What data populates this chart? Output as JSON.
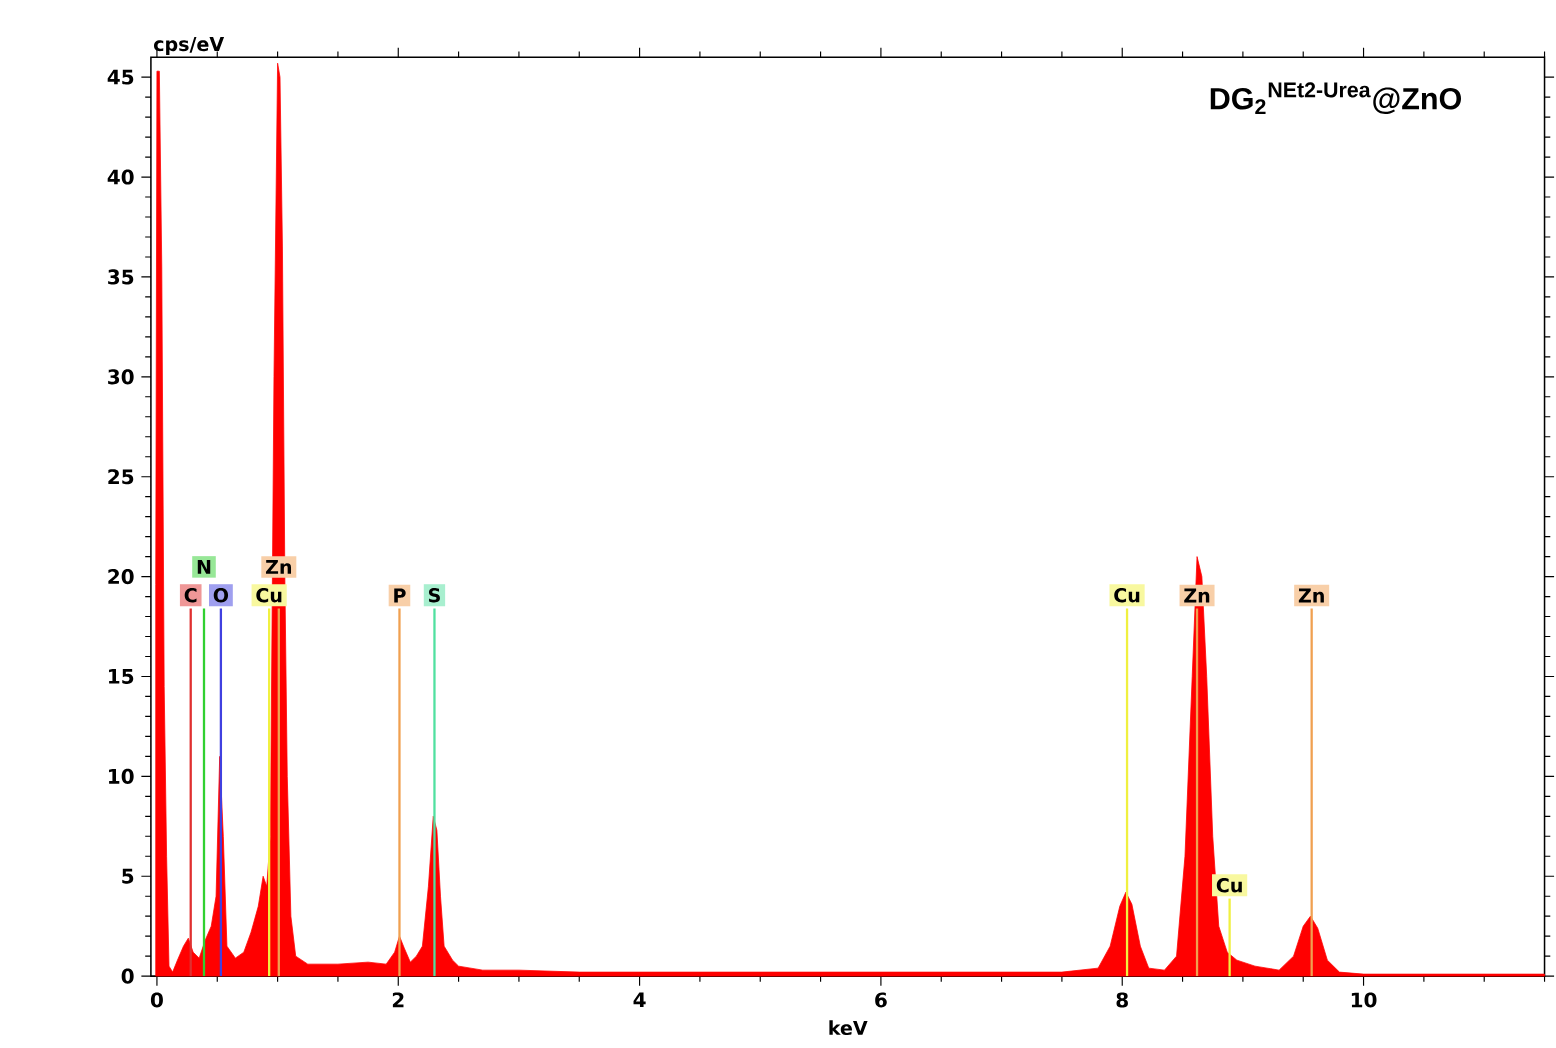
{
  "chart_data": {
    "type": "area",
    "title": "DG$_{2}$$^{NEt2-Urea}$@ZnO",
    "xlabel": "keV",
    "ylabel": "cps/eV",
    "x": [
      -0.01,
      0.0,
      0.02,
      0.04,
      0.06,
      0.08,
      0.1,
      0.13,
      0.17,
      0.22,
      0.26,
      0.3,
      0.35,
      0.4,
      0.45,
      0.49,
      0.52,
      0.55,
      0.58,
      0.65,
      0.72,
      0.78,
      0.84,
      0.88,
      0.91,
      0.94,
      0.97,
      1.0,
      1.02,
      1.04,
      1.06,
      1.08,
      1.11,
      1.15,
      1.25,
      1.5,
      1.75,
      1.9,
      1.97,
      2.01,
      2.05,
      2.1,
      2.15,
      2.2,
      2.25,
      2.29,
      2.32,
      2.35,
      2.38,
      2.45,
      2.5,
      2.7,
      3.0,
      3.5,
      4.0,
      5.0,
      6.0,
      7.0,
      7.5,
      7.8,
      7.9,
      7.98,
      8.03,
      8.08,
      8.15,
      8.22,
      8.35,
      8.45,
      8.52,
      8.58,
      8.62,
      8.66,
      8.7,
      8.75,
      8.8,
      8.87,
      8.95,
      9.1,
      9.3,
      9.42,
      9.5,
      9.56,
      9.62,
      9.7,
      9.8,
      10.0,
      11.5
    ],
    "values": [
      19.6,
      45.3,
      45.3,
      35.5,
      14.5,
      6,
      0.5,
      0.2,
      0.8,
      1.5,
      1.9,
      1.2,
      0.9,
      1.8,
      2.5,
      4,
      11,
      7,
      1.5,
      0.9,
      1.2,
      2.2,
      3.5,
      5,
      4.5,
      7,
      30,
      45.7,
      45,
      36.5,
      20,
      10,
      3,
      1,
      0.6,
      0.6,
      0.7,
      0.6,
      1.2,
      2.0,
      1.4,
      0.7,
      1.0,
      1.5,
      4.5,
      8.0,
      7.3,
      4,
      1.5,
      0.8,
      0.5,
      0.3,
      0.3,
      0.2,
      0.2,
      0.2,
      0.2,
      0.2,
      0.2,
      0.4,
      1.5,
      3.5,
      4.2,
      3.6,
      1.5,
      0.4,
      0.3,
      1.0,
      6,
      15,
      21,
      20,
      15,
      7,
      2.5,
      1.2,
      0.8,
      0.5,
      0.3,
      1.0,
      2.5,
      3.0,
      2.4,
      0.8,
      0.2,
      0.1,
      0.1
    ],
    "color": "#ff0000",
    "xlim": [
      -0.05,
      11.5
    ],
    "ylim": [
      0,
      46
    ],
    "xticks": [
      0,
      {
        "value": 0.5,
        "label": null
      },
      {
        "value": 1,
        "label": null
      },
      {
        "value": 1.5,
        "label": null
      },
      2,
      {
        "value": 2.5,
        "label": null
      },
      {
        "value": 3,
        "label": null
      },
      {
        "value": 3.5,
        "label": null
      },
      4,
      {
        "value": 4.5,
        "label": null
      },
      {
        "value": 5,
        "label": null
      },
      {
        "value": 5.5,
        "label": null
      },
      6,
      {
        "value": 6.5,
        "label": null
      },
      {
        "value": 7,
        "label": null
      },
      {
        "value": 7.5,
        "label": null
      },
      8,
      {
        "value": 8.5,
        "label": null
      },
      {
        "value": 9,
        "label": null
      },
      {
        "value": 9.5,
        "label": null
      },
      10,
      {
        "value": 10.5,
        "label": null
      },
      {
        "value": 11,
        "label": null
      },
      {
        "value": 11.5,
        "label": null
      }
    ],
    "yticks": [
      0,
      {
        "value": 1,
        "label": null
      },
      {
        "value": 2,
        "label": null
      },
      {
        "value": 3,
        "label": null
      },
      {
        "value": 4,
        "label": null
      },
      5,
      {
        "value": 6,
        "label": null
      },
      {
        "value": 7,
        "label": null
      },
      {
        "value": 8,
        "label": null
      },
      {
        "value": 9,
        "label": null
      },
      10,
      {
        "value": 11,
        "label": null
      },
      {
        "value": 12,
        "label": null
      },
      {
        "value": 13,
        "label": null
      },
      {
        "value": 14,
        "label": null
      },
      15,
      {
        "value": 16,
        "label": null
      },
      {
        "value": 17,
        "label": null
      },
      {
        "value": 18,
        "label": null
      },
      {
        "value": 19,
        "label": null
      },
      20,
      {
        "value": 21,
        "label": null
      },
      {
        "value": 22,
        "label": null
      },
      {
        "value": 23,
        "label": null
      },
      {
        "value": 24,
        "label": null
      },
      25,
      {
        "value": 26,
        "label": null
      },
      {
        "value": 27,
        "label": null
      },
      {
        "value": 28,
        "label": null
      },
      {
        "value": 29,
        "label": null
      },
      30,
      {
        "value": 31,
        "label": null
      },
      {
        "value": 32,
        "label": null
      },
      {
        "value": 33,
        "label": null
      },
      {
        "value": 34,
        "label": null
      },
      35,
      {
        "value": 36,
        "label": null
      },
      {
        "value": 37,
        "label": null
      },
      {
        "value": 38,
        "label": null
      },
      {
        "value": 39,
        "label": null
      },
      40,
      {
        "value": 41,
        "label": null
      },
      {
        "value": 42,
        "label": null
      },
      {
        "value": 43,
        "label": null
      },
      {
        "value": 44,
        "label": null
      },
      45
    ],
    "ref_lines": [
      {
        "axis": "x",
        "value": 0.28,
        "label": "C",
        "color": "#e03030"
      },
      {
        "axis": "x",
        "value": 0.39,
        "label": "N",
        "color": "#30d030"
      },
      {
        "axis": "x",
        "value": 0.53,
        "label": "O",
        "color": "#4040e0"
      },
      {
        "axis": "x",
        "value": 0.93,
        "label": "Cu",
        "color": "#f0f040"
      },
      {
        "axis": "x",
        "value": 1.01,
        "label": "Zn",
        "color": "#f0a050"
      },
      {
        "axis": "x",
        "value": 2.01,
        "label": "P",
        "color": "#f0a050"
      },
      {
        "axis": "x",
        "value": 2.3,
        "label": "S",
        "color": "#50e0a0"
      },
      {
        "axis": "x",
        "value": 8.04,
        "label": "Cu",
        "color": "#f0f040"
      },
      {
        "axis": "x",
        "value": 8.62,
        "label": "Zn",
        "color": "#f0a050"
      },
      {
        "axis": "x",
        "value": 8.89,
        "label": "Cu",
        "color": "#f0f040"
      },
      {
        "axis": "x",
        "value": 9.57,
        "label": "Zn",
        "color": "#f0a050"
      }
    ],
    "grid": false
  }
}
